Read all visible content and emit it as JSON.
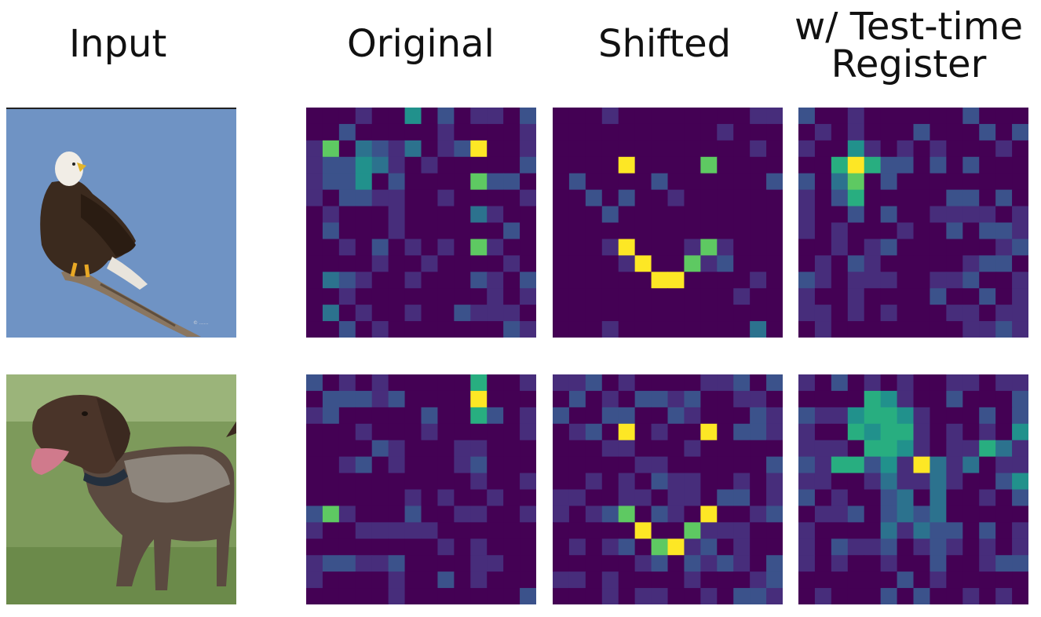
{
  "columns": {
    "input": "Input",
    "original": "Original",
    "shifted": "Shifted",
    "register_line1": "w/ Test-time",
    "register_line2": "Register"
  },
  "colors": {
    "dark": "#440154",
    "violet": "#472d7b",
    "blue": "#3b528b",
    "teal": "#2c728e",
    "cyan": "#21918c",
    "green": "#28ae80",
    "lime": "#5ec962",
    "yellow": "#fde725"
  },
  "rows": [
    {
      "input_subject": "eagle",
      "maps": [
        "original_eagle",
        "shifted_eagle",
        "register_eagle"
      ]
    },
    {
      "input_subject": "dog",
      "maps": [
        "original_dog",
        "shifted_dog",
        "register_dog"
      ]
    }
  ]
}
